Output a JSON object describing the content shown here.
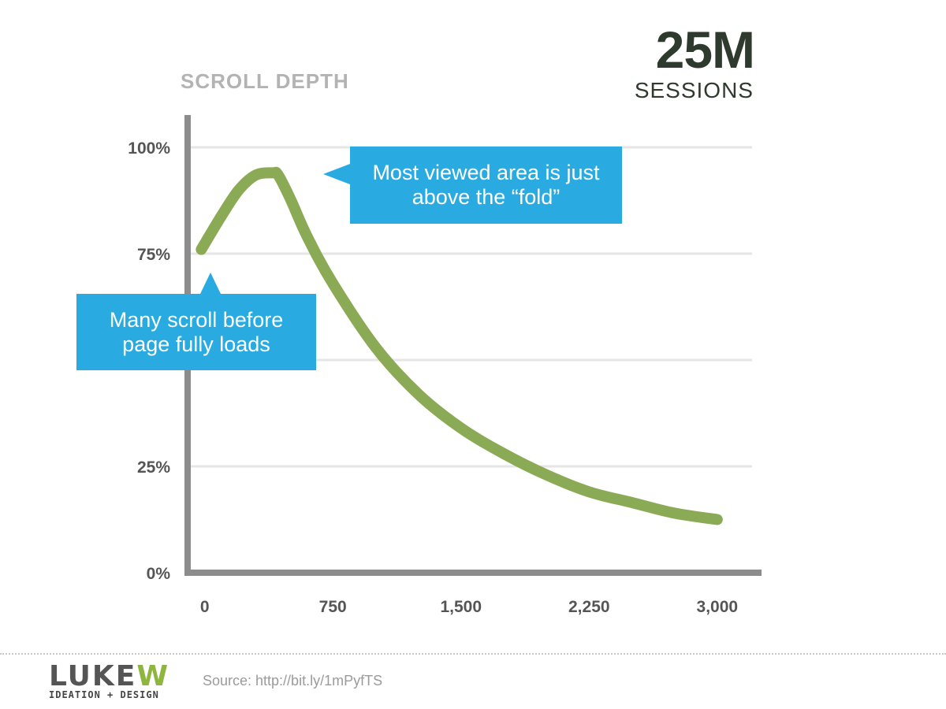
{
  "slide": {
    "title": "SCROLL DEPTH",
    "stat_value": "25M",
    "stat_label": "SESSIONS",
    "source": "Source: http://bit.ly/1mPyfTS"
  },
  "logo": {
    "mark_main": "LUKE",
    "mark_accent": "W",
    "tagline": "IDEATION + DESIGN"
  },
  "callouts": {
    "fold": "Most viewed area is just above the “fold”",
    "loads": "Many scroll before page fully loads"
  },
  "chart_data": {
    "type": "line",
    "xlabel": "",
    "ylabel": "",
    "xlim": [
      -100,
      3250
    ],
    "ylim": [
      0,
      100
    ],
    "x_ticks": [
      0,
      750,
      1500,
      2250,
      3000
    ],
    "x_tick_labels": [
      "0",
      "750",
      "1,500",
      "2,250",
      "3,000"
    ],
    "y_ticks": [
      0,
      25,
      50,
      75,
      100
    ],
    "y_tick_labels": [
      "0%",
      "25%",
      "",
      "75%",
      "100%"
    ],
    "grid": "horizontal",
    "series": [
      {
        "color": "#8aaa55",
        "x": [
          -20,
          100,
          200,
          300,
          400,
          430,
          500,
          600,
          750,
          1000,
          1250,
          1500,
          1750,
          2000,
          2250,
          2500,
          2750,
          3000
        ],
        "y": [
          76,
          84,
          90,
          93.5,
          94,
          93.5,
          88,
          79,
          68,
          53,
          42,
          34,
          28,
          23,
          19,
          16.5,
          14,
          12.5
        ]
      }
    ]
  },
  "colors": {
    "callout_bg": "#29abe2",
    "line": "#8aaa55",
    "axis": "#8c8c8c",
    "grid": "#e6e6e6",
    "title": "#b3b3b3",
    "stat": "#2f3a2f"
  }
}
